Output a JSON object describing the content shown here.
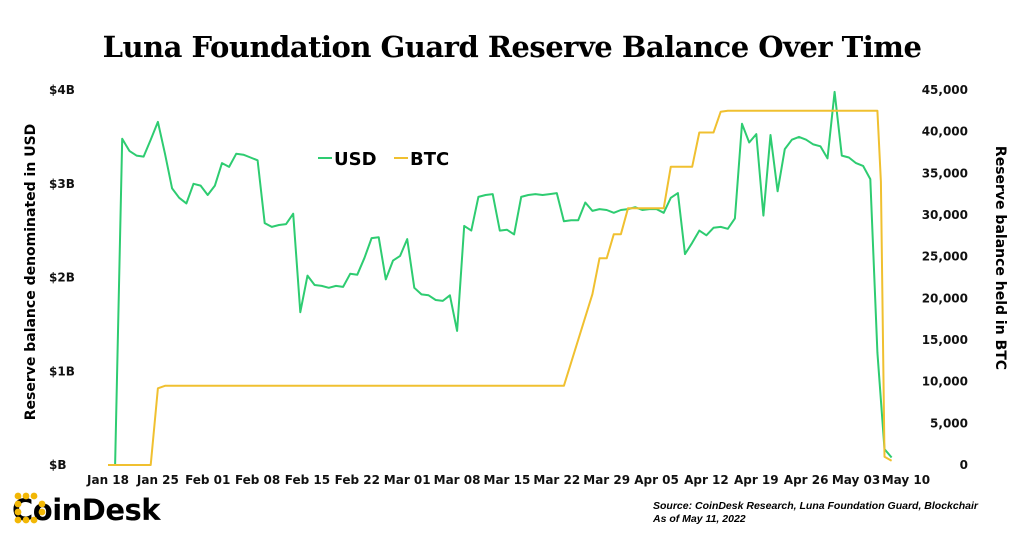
{
  "chart_data": {
    "type": "line",
    "title": "Luna Foundation Guard Reserve Balance Over Time",
    "y_left_label": "Reserve balance denominated in USD",
    "y_right_label": "Reserve balance held in BTC",
    "y_left_ticks": [
      "$B",
      "$1B",
      "$2B",
      "$3B",
      "$4B"
    ],
    "y_left_range": [
      0,
      4
    ],
    "y_right_ticks": [
      "0",
      "5,000",
      "10,000",
      "15,000",
      "20,000",
      "25,000",
      "30,000",
      "35,000",
      "40,000",
      "45,000"
    ],
    "y_right_range": [
      0,
      45000
    ],
    "x_ticks": [
      "Jan 18",
      "Jan 25",
      "Feb 01",
      "Feb 08",
      "Feb 15",
      "Feb 22",
      "Mar 01",
      "Mar 08",
      "Mar 15",
      "Mar 22",
      "Mar 29",
      "Apr 05",
      "Apr 12",
      "Apr 19",
      "Apr 26",
      "May 03",
      "May 10"
    ],
    "x_range_days": [
      0,
      113
    ],
    "legend": [
      {
        "name": "USD",
        "color": "#2ecc71"
      },
      {
        "name": "BTC",
        "color": "#f0c030"
      }
    ],
    "legend_position": "top-left",
    "grid": false,
    "series": [
      {
        "name": "USD",
        "color": "#2ecc71",
        "axis": "left",
        "points": [
          [
            0,
            0
          ],
          [
            1,
            0
          ],
          [
            2,
            3.48
          ],
          [
            3,
            3.35
          ],
          [
            4,
            3.3
          ],
          [
            5,
            3.29
          ],
          [
            6,
            3.47
          ],
          [
            7,
            3.66
          ],
          [
            8,
            3.32
          ],
          [
            9,
            2.95
          ],
          [
            10,
            2.85
          ],
          [
            11,
            2.79
          ],
          [
            12,
            3.0
          ],
          [
            13,
            2.98
          ],
          [
            14,
            2.88
          ],
          [
            15,
            2.98
          ],
          [
            16,
            3.22
          ],
          [
            17,
            3.18
          ],
          [
            18,
            3.32
          ],
          [
            19,
            3.31
          ],
          [
            20,
            3.28
          ],
          [
            21,
            3.25
          ],
          [
            22,
            2.58
          ],
          [
            23,
            2.54
          ],
          [
            24,
            2.56
          ],
          [
            25,
            2.57
          ],
          [
            26,
            2.68
          ],
          [
            27,
            1.63
          ],
          [
            28,
            2.02
          ],
          [
            29,
            1.92
          ],
          [
            30,
            1.91
          ],
          [
            31,
            1.89
          ],
          [
            32,
            1.91
          ],
          [
            33,
            1.9
          ],
          [
            34,
            2.04
          ],
          [
            35,
            2.03
          ],
          [
            36,
            2.21
          ],
          [
            37,
            2.42
          ],
          [
            38,
            2.43
          ],
          [
            39,
            1.98
          ],
          [
            40,
            2.18
          ],
          [
            41,
            2.23
          ],
          [
            42,
            2.41
          ],
          [
            43,
            1.89
          ],
          [
            44,
            1.82
          ],
          [
            45,
            1.81
          ],
          [
            46,
            1.76
          ],
          [
            47,
            1.75
          ],
          [
            48,
            1.81
          ],
          [
            49,
            1.43
          ],
          [
            50,
            2.55
          ],
          [
            51,
            2.5
          ],
          [
            52,
            2.86
          ],
          [
            53,
            2.88
          ],
          [
            54,
            2.89
          ],
          [
            55,
            2.5
          ],
          [
            56,
            2.51
          ],
          [
            57,
            2.46
          ],
          [
            58,
            2.86
          ],
          [
            59,
            2.88
          ],
          [
            60,
            2.89
          ],
          [
            61,
            2.88
          ],
          [
            62,
            2.89
          ],
          [
            63,
            2.9
          ],
          [
            64,
            2.6
          ],
          [
            65,
            2.61
          ],
          [
            66,
            2.61
          ],
          [
            67,
            2.8
          ],
          [
            68,
            2.71
          ],
          [
            69,
            2.73
          ],
          [
            70,
            2.72
          ],
          [
            71,
            2.69
          ],
          [
            72,
            2.72
          ],
          [
            73,
            2.73
          ],
          [
            74,
            2.75
          ],
          [
            75,
            2.72
          ],
          [
            76,
            2.73
          ],
          [
            77,
            2.73
          ],
          [
            78,
            2.69
          ],
          [
            79,
            2.85
          ],
          [
            80,
            2.9
          ],
          [
            81,
            2.25
          ],
          [
            82,
            2.37
          ],
          [
            83,
            2.5
          ],
          [
            84,
            2.45
          ],
          [
            85,
            2.53
          ],
          [
            86,
            2.54
          ],
          [
            87,
            2.52
          ],
          [
            88,
            2.63
          ],
          [
            89,
            3.64
          ],
          [
            90,
            3.44
          ],
          [
            91,
            3.53
          ],
          [
            92,
            2.66
          ],
          [
            93,
            3.52
          ],
          [
            94,
            2.92
          ],
          [
            95,
            3.37
          ],
          [
            96,
            3.47
          ],
          [
            97,
            3.5
          ],
          [
            98,
            3.47
          ],
          [
            99,
            3.42
          ],
          [
            100,
            3.4
          ],
          [
            101,
            3.27
          ],
          [
            102,
            3.98
          ],
          [
            103,
            3.3
          ],
          [
            104,
            3.28
          ],
          [
            105,
            3.22
          ],
          [
            106,
            3.19
          ],
          [
            107,
            3.05
          ],
          [
            108,
            1.2
          ],
          [
            109,
            0.17
          ],
          [
            110,
            0.08
          ]
        ]
      },
      {
        "name": "BTC",
        "color": "#f0c030",
        "axis": "right",
        "points": [
          [
            0,
            0
          ],
          [
            6,
            0
          ],
          [
            7,
            9200
          ],
          [
            8,
            9500
          ],
          [
            9,
            9500
          ],
          [
            64,
            9500
          ],
          [
            68,
            20500
          ],
          [
            69,
            24800
          ],
          [
            70,
            24800
          ],
          [
            71,
            27700
          ],
          [
            72,
            27700
          ],
          [
            73,
            30800
          ],
          [
            78,
            30800
          ],
          [
            79,
            35800
          ],
          [
            82,
            35800
          ],
          [
            83,
            39900
          ],
          [
            85,
            39900
          ],
          [
            86,
            42400
          ],
          [
            87,
            42500
          ],
          [
            108,
            42500
          ],
          [
            108.5,
            34000
          ],
          [
            109,
            1000
          ],
          [
            110,
            500
          ]
        ]
      }
    ]
  },
  "source": "Source: CoinDesk Research, Luna Foundation Guard, Blockchair",
  "as_of": "As of May 11, 2022",
  "logo": {
    "text": "CoinDesk",
    "color": "#f2b705"
  }
}
